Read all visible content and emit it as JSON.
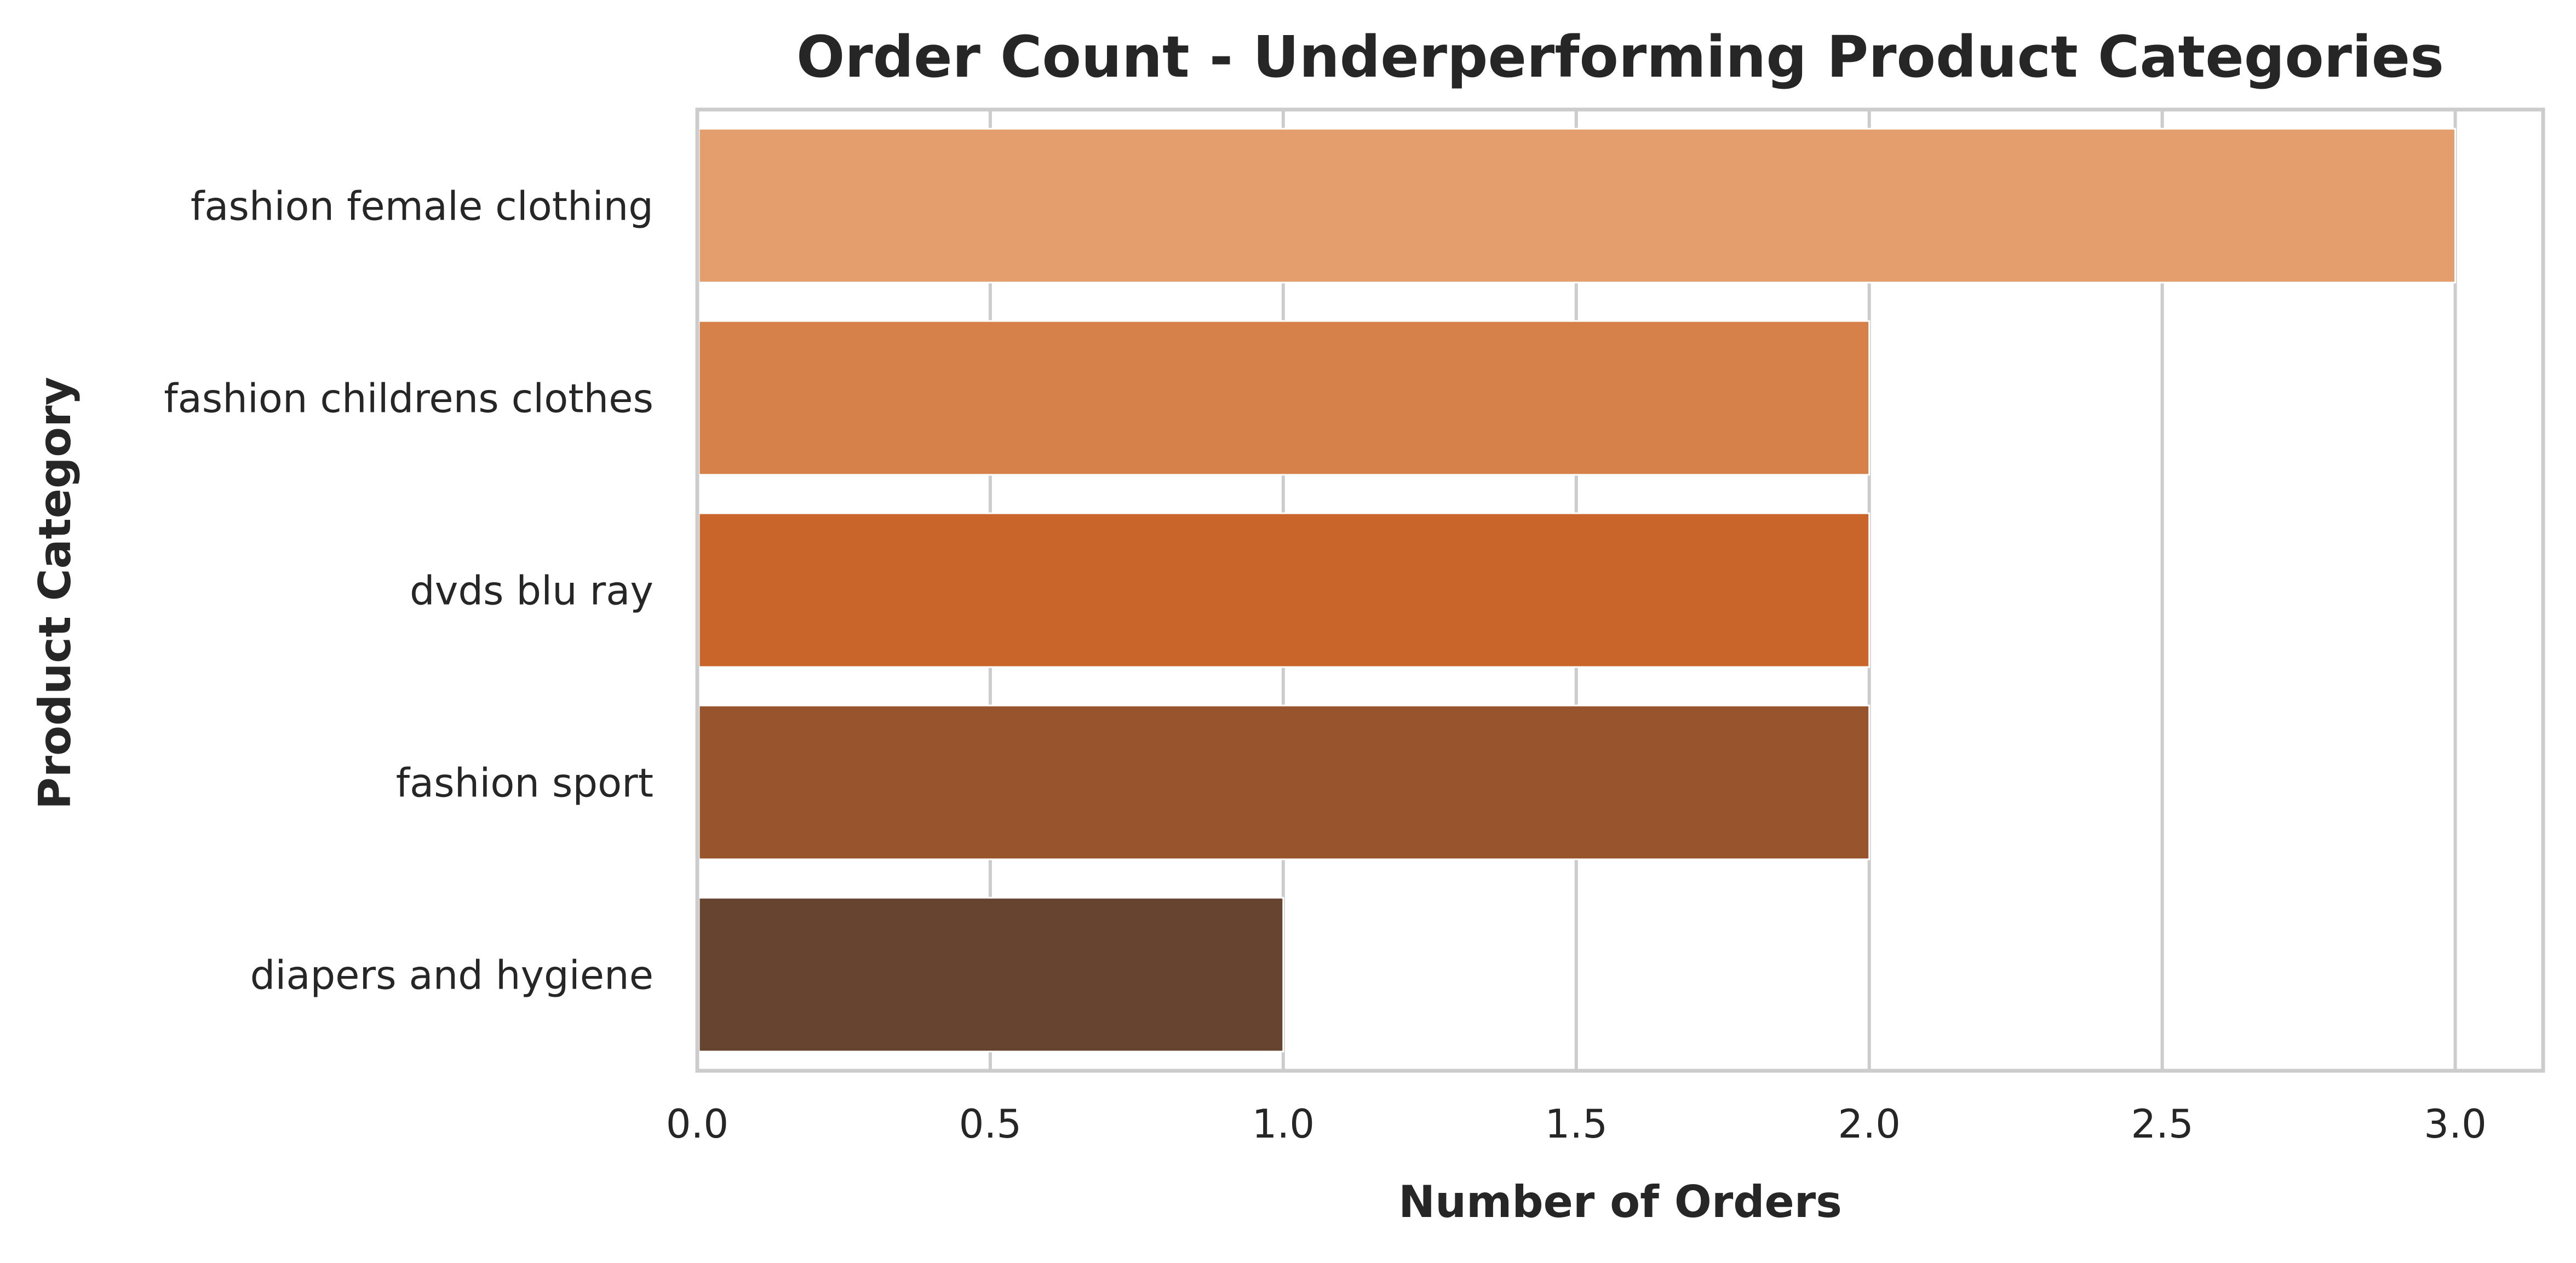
{
  "chart_data": {
    "type": "bar",
    "orientation": "horizontal",
    "title": "Order Count - Underperforming Product Categories",
    "xlabel": "Number of Orders",
    "ylabel": "Product Category",
    "categories": [
      "fashion female clothing",
      "fashion childrens clothes",
      "dvds blu ray",
      "fashion sport",
      "diapers and hygiene"
    ],
    "values": [
      3,
      2,
      2,
      2,
      1
    ],
    "colors": [
      "#e49e6d",
      "#d7814a",
      "#c9642a",
      "#98552d",
      "#67442f"
    ],
    "xlim": [
      0,
      3.15
    ],
    "xticks": [
      0.0,
      0.5,
      1.0,
      1.5,
      2.0,
      2.5,
      3.0
    ],
    "xtick_labels": [
      "0.0",
      "0.5",
      "1.0",
      "1.5",
      "2.0",
      "2.5",
      "3.0"
    ],
    "grid": true,
    "legend": "none"
  }
}
